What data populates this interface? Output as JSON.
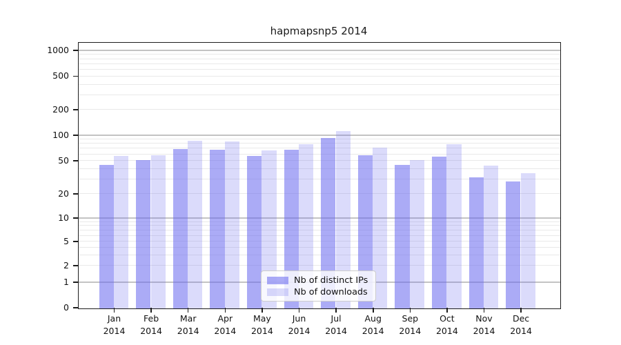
{
  "chart_data": {
    "type": "bar",
    "title": "hapmapsnp5 2014",
    "categories": [
      "Jan",
      "Feb",
      "Mar",
      "Apr",
      "May",
      "Jun",
      "Jul",
      "Aug",
      "Sep",
      "Oct",
      "Nov",
      "Dec"
    ],
    "year": "2014",
    "series": [
      {
        "name": "Nb of distinct IPs",
        "color": "rgba(102,102,238,0.55)",
        "values": [
          44,
          50,
          68,
          67,
          56,
          67,
          92,
          58,
          44,
          55,
          31,
          28
        ]
      },
      {
        "name": "Nb of downloads",
        "color": "rgba(102,102,238,0.235)",
        "values": [
          56,
          58,
          85,
          83,
          65,
          78,
          110,
          70,
          50,
          78,
          43,
          35
        ]
      }
    ],
    "bar_base_color": "#6666ee",
    "yscale": "symlog",
    "yticks": [
      0,
      1,
      2,
      5,
      10,
      20,
      50,
      100,
      200,
      500,
      1000
    ],
    "ylim": [
      0,
      1300
    ],
    "xlabel": "",
    "ylabel": "",
    "grid": true,
    "legend_position": "lower center",
    "major_grid_color": "#c3c3c3",
    "minor_grid_color": "#e9e9e9"
  }
}
